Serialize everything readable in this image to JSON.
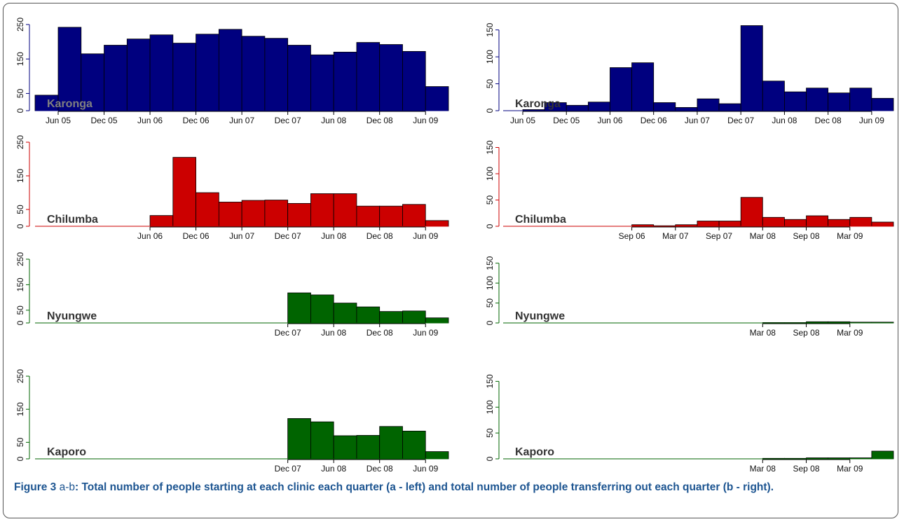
{
  "chart_data": [
    {
      "type": "bar",
      "title": "Karonga",
      "title_color": "#808080",
      "color": "#00007f",
      "categories": [
        null,
        "Jun 05",
        null,
        "Dec 05",
        null,
        "Jun 06",
        null,
        "Dec 06",
        null,
        "Jun 07",
        null,
        "Dec 07",
        null,
        "Jun 08",
        null,
        "Dec 08",
        null,
        "Jun 09"
      ],
      "values": [
        45,
        242,
        165,
        190,
        208,
        220,
        196,
        222,
        236,
        216,
        210,
        190,
        162,
        170,
        198,
        192,
        172,
        70
      ],
      "ylim": [
        0,
        250
      ],
      "yticks": [
        0,
        50,
        150,
        250
      ]
    },
    {
      "type": "bar",
      "title": "Karonga",
      "title_color": "#333333",
      "color": "#00007f",
      "categories": [
        null,
        "Jun 05",
        null,
        "Dec 05",
        null,
        "Jun 06",
        null,
        "Dec 06",
        null,
        "Jun 07",
        null,
        "Dec 07",
        null,
        "Jun 08",
        null,
        "Dec 08",
        null,
        "Jun 09"
      ],
      "values": [
        0,
        2,
        15,
        10,
        16,
        80,
        89,
        15,
        6,
        22,
        13,
        158,
        55,
        35,
        42,
        33,
        42,
        23
      ],
      "ylim": [
        0,
        160
      ],
      "yticks": [
        0,
        50,
        100,
        150
      ]
    },
    {
      "type": "bar",
      "title": "Chilumba",
      "title_color": "#333333",
      "color": "#cc0000",
      "categories": [
        null,
        null,
        null,
        null,
        null,
        "Jun 06",
        null,
        "Dec 06",
        null,
        "Jun 07",
        null,
        "Dec 07",
        null,
        "Jun 08",
        null,
        "Dec 08",
        null,
        "Jun 09"
      ],
      "values": [
        0,
        0,
        0,
        0,
        0,
        32,
        205,
        100,
        72,
        77,
        78,
        68,
        97,
        97,
        60,
        60,
        65,
        17
      ],
      "ylim": [
        0,
        250
      ],
      "yticks": [
        0,
        50,
        150,
        250
      ]
    },
    {
      "type": "bar",
      "title": "Chilumba",
      "title_color": "#333333",
      "color": "#cc0000",
      "categories": [
        null,
        null,
        null,
        null,
        null,
        null,
        "Sep 06",
        null,
        "Mar 07",
        null,
        "Sep 07",
        null,
        "Mar 08",
        null,
        "Sep 08",
        null,
        "Mar 09",
        null
      ],
      "values": [
        0,
        0,
        0,
        0,
        0,
        0,
        3,
        1,
        3,
        10,
        10,
        55,
        17,
        13,
        20,
        13,
        17,
        8
      ],
      "ylim": [
        0,
        160
      ],
      "yticks": [
        0,
        50,
        100,
        150
      ]
    },
    {
      "type": "bar",
      "title": "Nyungwe",
      "title_color": "#333333",
      "color": "#006400",
      "categories": [
        null,
        null,
        null,
        null,
        null,
        null,
        null,
        null,
        null,
        null,
        null,
        "Dec 07",
        null,
        "Jun 08",
        null,
        "Dec 08",
        null,
        "Jun 09"
      ],
      "values": [
        0,
        0,
        0,
        0,
        0,
        0,
        0,
        0,
        0,
        0,
        0,
        118,
        110,
        78,
        63,
        45,
        47,
        20
      ],
      "ylim": [
        0,
        250
      ],
      "yticks": [
        0,
        50,
        150,
        250
      ]
    },
    {
      "type": "bar",
      "title": "Nyungwe",
      "title_color": "#333333",
      "color": "#006400",
      "categories": [
        null,
        null,
        null,
        null,
        null,
        null,
        null,
        null,
        null,
        null,
        null,
        null,
        "Mar 08",
        null,
        "Sep 08",
        null,
        "Mar 09",
        null
      ],
      "values": [
        0,
        0,
        0,
        0,
        0,
        0,
        0,
        0,
        0,
        0,
        0,
        0,
        1,
        1,
        3,
        3,
        2,
        2
      ],
      "ylim": [
        0,
        160
      ],
      "yticks": [
        0,
        50,
        100,
        150
      ]
    },
    {
      "type": "bar",
      "title": "Kaporo",
      "title_color": "#333333",
      "color": "#006400",
      "categories": [
        null,
        null,
        null,
        null,
        null,
        null,
        null,
        null,
        null,
        null,
        null,
        "Dec 07",
        null,
        "Jun 08",
        null,
        "Dec 08",
        null,
        "Jun 09"
      ],
      "values": [
        0,
        0,
        0,
        0,
        0,
        0,
        0,
        0,
        0,
        0,
        0,
        122,
        112,
        70,
        71,
        98,
        84,
        22
      ],
      "ylim": [
        0,
        250
      ],
      "yticks": [
        0,
        50,
        150,
        250
      ]
    },
    {
      "type": "bar",
      "title": "Kaporo",
      "title_color": "#333333",
      "color": "#006400",
      "categories": [
        null,
        null,
        null,
        null,
        null,
        null,
        null,
        null,
        null,
        null,
        null,
        null,
        "Mar 08",
        null,
        "Sep 08",
        null,
        "Mar 09",
        null
      ],
      "values": [
        0,
        0,
        0,
        0,
        0,
        0,
        0,
        0,
        0,
        0,
        0,
        0,
        1,
        1,
        2,
        2,
        2,
        15
      ],
      "ylim": [
        0,
        160
      ],
      "yticks": [
        0,
        50,
        100,
        150
      ]
    }
  ],
  "caption": {
    "label": "Figure 3",
    "part": "a-b",
    "text": ": Total number of people starting at each clinic each quarter (a - left) and total number of people transferring out each quarter (b - right)."
  }
}
